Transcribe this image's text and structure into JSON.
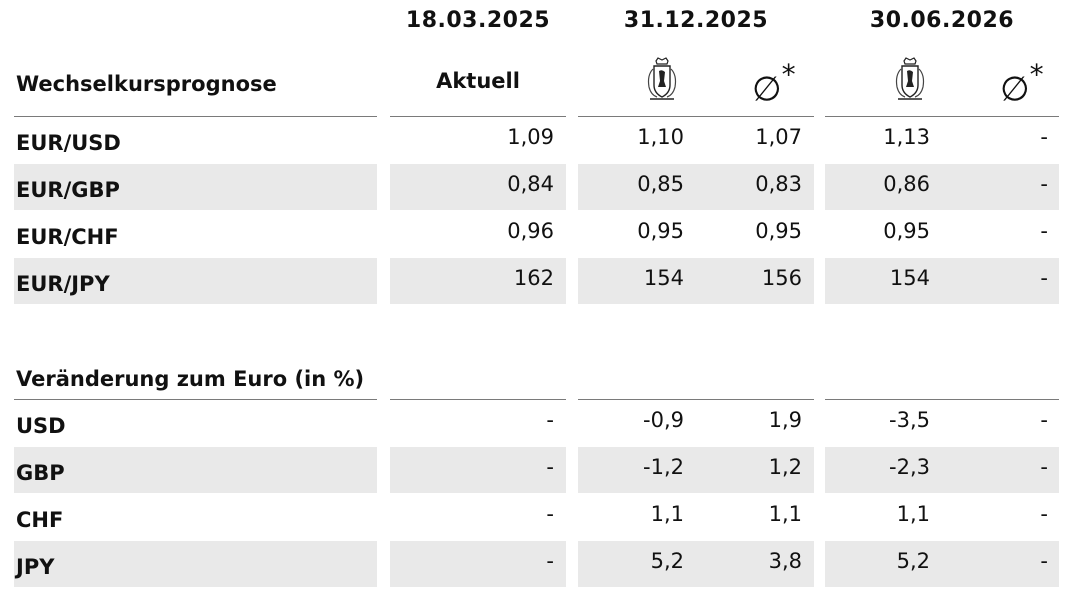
{
  "dates": [
    "18.03.2025",
    "31.12.2025",
    "30.06.2026"
  ],
  "section1_title": "Wechselkursprognose",
  "col_current": "Aktuell",
  "avg_symbol": "∅",
  "avg_star": "*",
  "crest_icon": "coat-of-arms-icon",
  "section2_title": "Veränderung zum Euro (in %)",
  "forecast_rows": [
    {
      "label": "EUR/USD",
      "aktuell": "1,09",
      "d1_own": "1,10",
      "d1_avg": "1,07",
      "d2_own": "1,13",
      "d2_avg": "-"
    },
    {
      "label": "EUR/GBP",
      "aktuell": "0,84",
      "d1_own": "0,85",
      "d1_avg": "0,83",
      "d2_own": "0,86",
      "d2_avg": "-"
    },
    {
      "label": "EUR/CHF",
      "aktuell": "0,96",
      "d1_own": "0,95",
      "d1_avg": "0,95",
      "d2_own": "0,95",
      "d2_avg": "-"
    },
    {
      "label": "EUR/JPY",
      "aktuell": "162",
      "d1_own": "154",
      "d1_avg": "156",
      "d2_own": "154",
      "d2_avg": "-"
    }
  ],
  "change_rows": [
    {
      "label": "USD",
      "aktuell": "-",
      "d1_own": "-0,9",
      "d1_avg": "1,9",
      "d2_own": "-3,5",
      "d2_avg": "-"
    },
    {
      "label": "GBP",
      "aktuell": "-",
      "d1_own": "-1,2",
      "d1_avg": "1,2",
      "d2_own": "-2,3",
      "d2_avg": "-"
    },
    {
      "label": "CHF",
      "aktuell": "-",
      "d1_own": "1,1",
      "d1_avg": "1,1",
      "d2_own": "1,1",
      "d2_avg": "-"
    },
    {
      "label": "JPY",
      "aktuell": "-",
      "d1_own": "5,2",
      "d1_avg": "3,8",
      "d2_own": "5,2",
      "d2_avg": "-"
    }
  ]
}
